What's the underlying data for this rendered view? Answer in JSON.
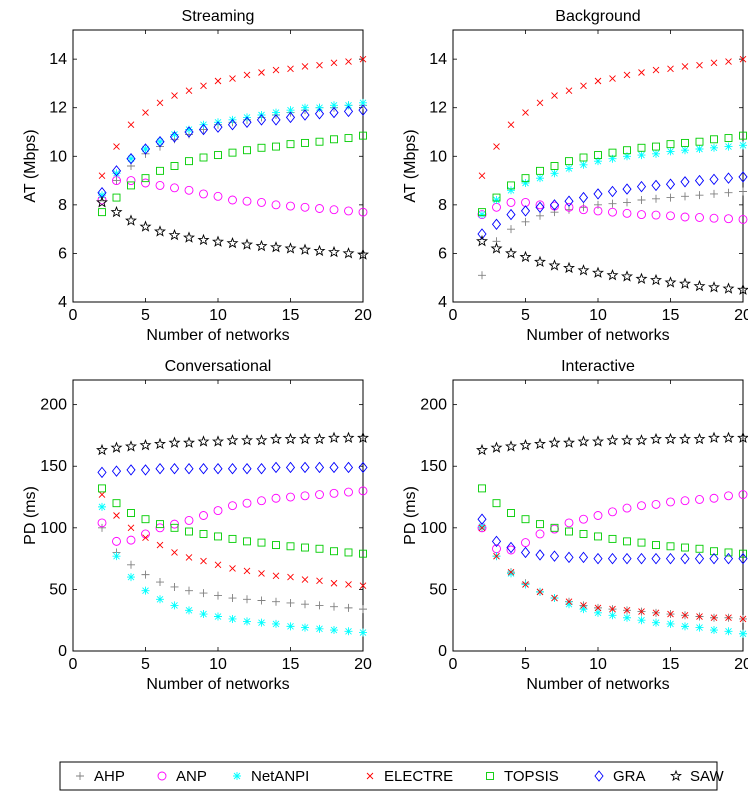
{
  "chart_data": [
    {
      "type": "scatter",
      "title": "Streaming",
      "xlabel": "Number of networks",
      "ylabel": "AT (Mbps)",
      "xlim": [
        0,
        20
      ],
      "ylim": [
        4,
        15.2
      ],
      "xticks": [
        "0",
        "5",
        "10",
        "15",
        "20"
      ],
      "yticks": [
        "4",
        "6",
        "8",
        "10",
        "12",
        "14"
      ],
      "x": [
        2,
        3,
        4,
        5,
        6,
        7,
        8,
        9,
        10,
        11,
        12,
        13,
        14,
        15,
        16,
        17,
        18,
        19,
        20
      ],
      "series": [
        {
          "name": "AHP",
          "values": [
            8.3,
            9.0,
            9.6,
            10.1,
            10.4,
            10.7,
            10.9,
            11.1,
            11.3,
            11.4,
            11.5,
            11.6,
            11.7,
            11.8,
            11.9,
            12.0,
            12.0,
            12.1,
            12.1
          ]
        },
        {
          "name": "ANP",
          "values": [
            8.2,
            9.0,
            9.0,
            8.9,
            8.8,
            8.7,
            8.6,
            8.45,
            8.35,
            8.2,
            8.15,
            8.1,
            8.0,
            7.95,
            7.9,
            7.85,
            7.8,
            7.75,
            7.7
          ]
        },
        {
          "name": "NetANPI",
          "values": [
            8.4,
            9.3,
            9.9,
            10.3,
            10.6,
            10.9,
            11.1,
            11.3,
            11.4,
            11.5,
            11.6,
            11.7,
            11.8,
            11.9,
            12.0,
            12.0,
            12.1,
            12.1,
            12.2
          ]
        },
        {
          "name": "ELECTRE",
          "values": [
            9.2,
            10.4,
            11.3,
            11.8,
            12.2,
            12.5,
            12.7,
            12.9,
            13.1,
            13.2,
            13.35,
            13.45,
            13.55,
            13.6,
            13.7,
            13.75,
            13.85,
            13.9,
            14.0
          ]
        },
        {
          "name": "TOPSIS",
          "values": [
            7.7,
            8.3,
            8.8,
            9.1,
            9.4,
            9.6,
            9.8,
            9.95,
            10.05,
            10.15,
            10.25,
            10.35,
            10.4,
            10.5,
            10.55,
            10.6,
            10.7,
            10.75,
            10.85
          ]
        },
        {
          "name": "GRA",
          "values": [
            8.5,
            9.4,
            9.9,
            10.3,
            10.6,
            10.8,
            11.0,
            11.1,
            11.2,
            11.3,
            11.4,
            11.5,
            11.5,
            11.6,
            11.7,
            11.75,
            11.8,
            11.85,
            11.9
          ]
        },
        {
          "name": "SAW",
          "values": [
            8.1,
            7.7,
            7.35,
            7.1,
            6.9,
            6.75,
            6.65,
            6.55,
            6.48,
            6.42,
            6.36,
            6.3,
            6.25,
            6.2,
            6.15,
            6.1,
            6.05,
            6.0,
            5.95
          ]
        }
      ]
    },
    {
      "type": "scatter",
      "title": "Background",
      "xlabel": "Number of networks",
      "ylabel": "AT (Mbps)",
      "xlim": [
        0,
        20
      ],
      "ylim": [
        4,
        15.2
      ],
      "xticks": [
        "0",
        "5",
        "10",
        "15",
        "20"
      ],
      "yticks": [
        "4",
        "6",
        "8",
        "10",
        "12",
        "14"
      ],
      "x": [
        2,
        3,
        4,
        5,
        6,
        7,
        8,
        9,
        10,
        11,
        12,
        13,
        14,
        15,
        16,
        17,
        18,
        19,
        20
      ],
      "series": [
        {
          "name": "AHP",
          "values": [
            5.1,
            6.5,
            7.0,
            7.3,
            7.55,
            7.7,
            7.8,
            7.9,
            8.0,
            8.05,
            8.1,
            8.2,
            8.25,
            8.3,
            8.35,
            8.4,
            8.45,
            8.5,
            8.55
          ]
        },
        {
          "name": "ANP",
          "values": [
            7.6,
            7.9,
            8.1,
            8.1,
            8.0,
            7.95,
            7.9,
            7.8,
            7.75,
            7.7,
            7.65,
            7.6,
            7.58,
            7.55,
            7.5,
            7.48,
            7.45,
            7.43,
            7.4
          ]
        },
        {
          "name": "NetANPI",
          "values": [
            7.6,
            8.2,
            8.6,
            8.9,
            9.1,
            9.3,
            9.5,
            9.65,
            9.8,
            9.9,
            10.0,
            10.05,
            10.1,
            10.2,
            10.25,
            10.3,
            10.35,
            10.4,
            10.45
          ]
        },
        {
          "name": "ELECTRE",
          "values": [
            9.2,
            10.4,
            11.3,
            11.8,
            12.2,
            12.5,
            12.7,
            12.9,
            13.1,
            13.2,
            13.35,
            13.45,
            13.55,
            13.6,
            13.7,
            13.75,
            13.85,
            13.9,
            14.0
          ]
        },
        {
          "name": "TOPSIS",
          "values": [
            7.7,
            8.3,
            8.8,
            9.1,
            9.4,
            9.6,
            9.8,
            9.95,
            10.05,
            10.15,
            10.25,
            10.35,
            10.4,
            10.5,
            10.55,
            10.6,
            10.7,
            10.75,
            10.85
          ]
        },
        {
          "name": "GRA",
          "values": [
            6.8,
            7.2,
            7.6,
            7.75,
            7.9,
            8.0,
            8.15,
            8.3,
            8.45,
            8.55,
            8.65,
            8.75,
            8.8,
            8.85,
            8.95,
            9.0,
            9.05,
            9.1,
            9.15
          ]
        },
        {
          "name": "SAW",
          "values": [
            6.5,
            6.2,
            6.0,
            5.85,
            5.65,
            5.5,
            5.4,
            5.3,
            5.2,
            5.1,
            5.05,
            4.95,
            4.9,
            4.8,
            4.75,
            4.65,
            4.6,
            4.55,
            4.5
          ]
        }
      ]
    },
    {
      "type": "scatter",
      "title": "Conversational",
      "xlabel": "Number of networks",
      "ylabel": "PD (ms)",
      "xlim": [
        0,
        20
      ],
      "ylim": [
        0,
        220
      ],
      "xticks": [
        "0",
        "5",
        "10",
        "15",
        "20"
      ],
      "yticks": [
        "0",
        "50",
        "100",
        "150",
        "200"
      ],
      "x": [
        2,
        3,
        4,
        5,
        6,
        7,
        8,
        9,
        10,
        11,
        12,
        13,
        14,
        15,
        16,
        17,
        18,
        19,
        20
      ],
      "series": [
        {
          "name": "AHP",
          "values": [
            100,
            80,
            70,
            62,
            56,
            52,
            49,
            47,
            45,
            43,
            42,
            41,
            40,
            39,
            38,
            37,
            36,
            35,
            34
          ]
        },
        {
          "name": "ANP",
          "values": [
            104,
            89,
            90,
            95,
            100,
            103,
            106,
            110,
            114,
            118,
            120,
            122,
            124,
            125,
            126,
            127,
            128,
            129,
            130
          ]
        },
        {
          "name": "NetANPI",
          "values": [
            117,
            77,
            60,
            49,
            42,
            37,
            33,
            30,
            28,
            26,
            24,
            23,
            22,
            20,
            19,
            18,
            17,
            16,
            15
          ]
        },
        {
          "name": "ELECTRE",
          "values": [
            127,
            110,
            100,
            92,
            86,
            80,
            76,
            73,
            70,
            67,
            65,
            63,
            61,
            60,
            58,
            57,
            55,
            54,
            53
          ]
        },
        {
          "name": "TOPSIS",
          "values": [
            132,
            120,
            112,
            107,
            103,
            100,
            97,
            95,
            93,
            91,
            89,
            88,
            86,
            85,
            84,
            83,
            81,
            80,
            79
          ]
        },
        {
          "name": "GRA",
          "values": [
            145,
            146,
            147,
            147,
            148,
            148,
            148,
            148,
            148,
            148,
            148,
            148,
            149,
            149,
            149,
            149,
            149,
            149,
            149
          ]
        },
        {
          "name": "SAW",
          "values": [
            163,
            165,
            166,
            167,
            168,
            169,
            169,
            170,
            170,
            171,
            171,
            171,
            172,
            172,
            172,
            172,
            173,
            173,
            173
          ]
        }
      ]
    },
    {
      "type": "scatter",
      "title": "Interactive",
      "xlabel": "Number of networks",
      "ylabel": "PD (ms)",
      "xlim": [
        0,
        20
      ],
      "ylim": [
        0,
        220
      ],
      "xticks": [
        "0",
        "5",
        "10",
        "15",
        "20"
      ],
      "yticks": [
        "0",
        "50",
        "100",
        "150",
        "200"
      ],
      "x": [
        2,
        3,
        4,
        5,
        6,
        7,
        8,
        9,
        10,
        11,
        12,
        13,
        14,
        15,
        16,
        17,
        18,
        19,
        20
      ],
      "series": [
        {
          "name": "AHP",
          "values": [
            100,
            77,
            64,
            55,
            48,
            43,
            40,
            37,
            35,
            34,
            33,
            32,
            31,
            30,
            29,
            28,
            27,
            27,
            26
          ]
        },
        {
          "name": "ANP",
          "values": [
            100,
            83,
            82,
            88,
            95,
            99,
            104,
            107,
            110,
            113,
            116,
            118,
            119,
            121,
            122,
            123,
            124,
            126,
            127
          ]
        },
        {
          "name": "NetANPI",
          "values": [
            101,
            77,
            63,
            54,
            48,
            43,
            38,
            34,
            31,
            29,
            27,
            25,
            23,
            22,
            20,
            19,
            17,
            16,
            14
          ]
        },
        {
          "name": "ELECTRE",
          "values": [
            100,
            77,
            64,
            54,
            48,
            43,
            40,
            37,
            35,
            34,
            33,
            32,
            31,
            30,
            29,
            28,
            27,
            27,
            26
          ]
        },
        {
          "name": "TOPSIS",
          "values": [
            132,
            120,
            112,
            107,
            103,
            100,
            97,
            95,
            93,
            91,
            89,
            88,
            86,
            85,
            84,
            83,
            81,
            80,
            79
          ]
        },
        {
          "name": "GRA",
          "values": [
            107,
            89,
            84,
            80,
            78,
            77,
            76,
            76,
            75,
            75,
            75,
            75,
            75,
            75,
            75,
            75,
            75,
            75,
            75
          ]
        },
        {
          "name": "SAW",
          "values": [
            163,
            165,
            166,
            167,
            168,
            169,
            169,
            170,
            170,
            171,
            171,
            171,
            172,
            172,
            172,
            172,
            173,
            173,
            173
          ]
        }
      ]
    }
  ],
  "legend": {
    "placement": "bottom",
    "entries": [
      {
        "name": "AHP",
        "marker": "plus",
        "color": "#808080"
      },
      {
        "name": "ANP",
        "marker": "circle",
        "color": "#ff00ff"
      },
      {
        "name": "NetANPI",
        "marker": "asterisk",
        "color": "#00ffff"
      },
      {
        "name": "ELECTRE",
        "marker": "x",
        "color": "#ff0000"
      },
      {
        "name": "TOPSIS",
        "marker": "square",
        "color": "#00cc00"
      },
      {
        "name": "GRA",
        "marker": "diamond",
        "color": "#0000ff"
      },
      {
        "name": "SAW",
        "marker": "pentagram",
        "color": "#000000"
      }
    ]
  }
}
